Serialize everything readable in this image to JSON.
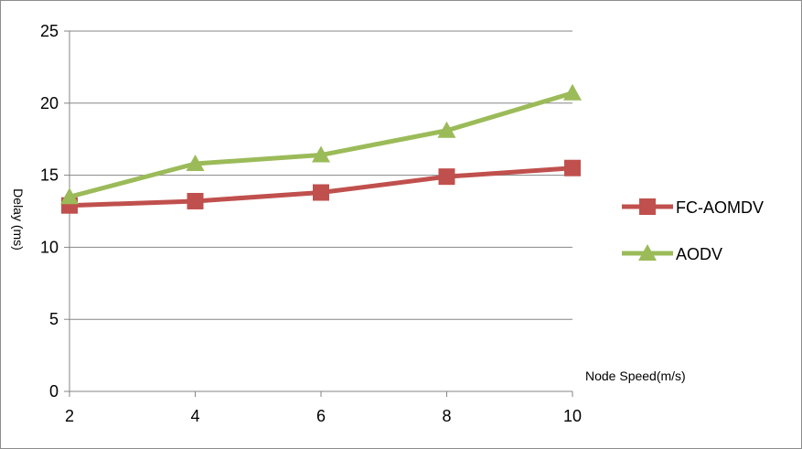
{
  "chart_data": {
    "type": "line",
    "x": [
      2,
      4,
      6,
      8,
      10
    ],
    "ylim": [
      0,
      25
    ],
    "yticks": [
      0,
      5,
      10,
      15,
      20,
      25
    ],
    "xlabel": "Node Speed(m/s)",
    "ylabel": "Delay (ms)",
    "grid": "horizontal",
    "legend_position": "right",
    "series": [
      {
        "name": "FC-AOMDV",
        "values": [
          12.9,
          13.2,
          13.8,
          14.9,
          15.5
        ],
        "color": "#c0504d",
        "marker": "square"
      },
      {
        "name": "AODV",
        "values": [
          13.5,
          15.8,
          16.4,
          18.1,
          20.7
        ],
        "color": "#9bbb59",
        "marker": "triangle"
      }
    ]
  }
}
